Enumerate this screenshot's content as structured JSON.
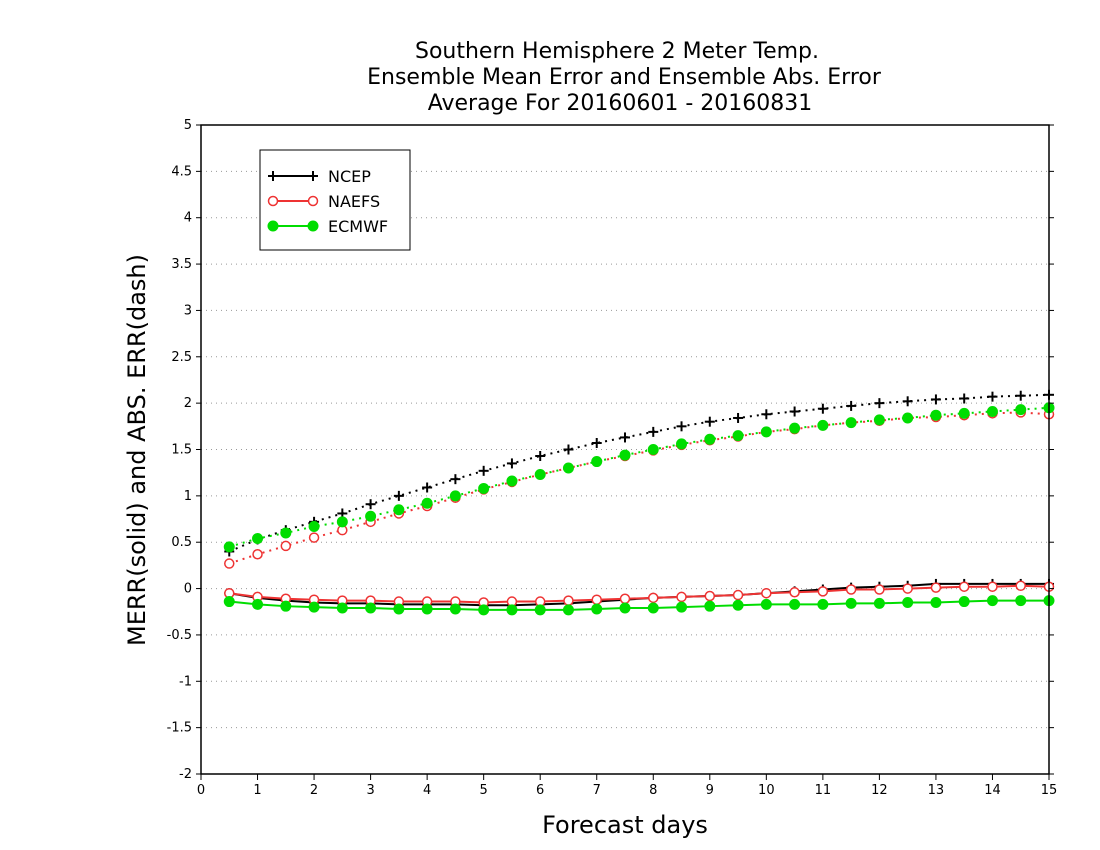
{
  "chart_data": {
    "type": "line",
    "title_lines": [
      "Southern Hemisphere 2 Meter Temp.",
      "Ensemble Mean Error and Ensemble Abs. Error",
      "Average For 20160601 - 20160831"
    ],
    "xlabel": "Forecast days",
    "ylabel": "MERR(solid) and ABS. ERR(dash)",
    "xlim": [
      0,
      15
    ],
    "ylim": [
      -2,
      5
    ],
    "x_ticks": [
      "0",
      "1",
      "2",
      "3",
      "4",
      "5",
      "6",
      "7",
      "8",
      "9",
      "10",
      "11",
      "12",
      "13",
      "14",
      "15"
    ],
    "y_ticks": [
      "-2",
      "-1.5",
      "-1",
      "-0.5",
      "0",
      "0.5",
      "1",
      "1.5",
      "2",
      "2.5",
      "3",
      "3.5",
      "4",
      "4.5",
      "5"
    ],
    "grid": "horizontal dotted",
    "legend_position": "top-left",
    "x": [
      0.5,
      1,
      1.5,
      2,
      2.5,
      3,
      3.5,
      4,
      4.5,
      5,
      5.5,
      6,
      6.5,
      7,
      7.5,
      8,
      8.5,
      9,
      9.5,
      10,
      10.5,
      11,
      11.5,
      12,
      12.5,
      13,
      13.5,
      14,
      14.5,
      15
    ],
    "series": [
      {
        "name": "NCEP",
        "color": "#000000",
        "marker": "plus",
        "abs_err": [
          0.4,
          0.53,
          0.63,
          0.72,
          0.81,
          0.91,
          1.0,
          1.09,
          1.18,
          1.27,
          1.35,
          1.43,
          1.5,
          1.57,
          1.63,
          1.69,
          1.75,
          1.8,
          1.84,
          1.88,
          1.91,
          1.94,
          1.97,
          2.0,
          2.02,
          2.04,
          2.05,
          2.07,
          2.08,
          2.09
        ],
        "mean_err": [
          -0.05,
          -0.1,
          -0.13,
          -0.15,
          -0.16,
          -0.16,
          -0.17,
          -0.17,
          -0.17,
          -0.18,
          -0.18,
          -0.17,
          -0.16,
          -0.14,
          -0.12,
          -0.1,
          -0.09,
          -0.08,
          -0.07,
          -0.05,
          -0.03,
          -0.01,
          0.01,
          0.02,
          0.03,
          0.05,
          0.05,
          0.05,
          0.05,
          0.05
        ]
      },
      {
        "name": "NAEFS",
        "color": "#ee3333",
        "marker": "open-circle",
        "abs_err": [
          0.27,
          0.37,
          0.46,
          0.55,
          0.63,
          0.72,
          0.81,
          0.89,
          0.98,
          1.07,
          1.15,
          1.23,
          1.3,
          1.37,
          1.43,
          1.49,
          1.55,
          1.6,
          1.64,
          1.69,
          1.72,
          1.76,
          1.79,
          1.81,
          1.84,
          1.85,
          1.87,
          1.89,
          1.9,
          1.88
        ],
        "mean_err": [
          -0.05,
          -0.09,
          -0.11,
          -0.12,
          -0.13,
          -0.13,
          -0.14,
          -0.14,
          -0.14,
          -0.15,
          -0.14,
          -0.14,
          -0.13,
          -0.12,
          -0.11,
          -0.1,
          -0.09,
          -0.08,
          -0.07,
          -0.05,
          -0.04,
          -0.03,
          -0.01,
          -0.01,
          0.0,
          0.01,
          0.02,
          0.02,
          0.03,
          0.02
        ]
      },
      {
        "name": "ECMWF",
        "color": "#00dd00",
        "marker": "filled-circle",
        "abs_err": [
          0.45,
          0.54,
          0.6,
          0.67,
          0.72,
          0.78,
          0.85,
          0.92,
          1.0,
          1.08,
          1.16,
          1.23,
          1.3,
          1.37,
          1.44,
          1.5,
          1.56,
          1.61,
          1.65,
          1.69,
          1.73,
          1.76,
          1.79,
          1.82,
          1.84,
          1.87,
          1.89,
          1.91,
          1.93,
          1.95
        ],
        "mean_err": [
          -0.14,
          -0.17,
          -0.19,
          -0.2,
          -0.21,
          -0.21,
          -0.22,
          -0.22,
          -0.22,
          -0.23,
          -0.23,
          -0.23,
          -0.23,
          -0.22,
          -0.21,
          -0.21,
          -0.2,
          -0.19,
          -0.18,
          -0.17,
          -0.17,
          -0.17,
          -0.16,
          -0.16,
          -0.15,
          -0.15,
          -0.14,
          -0.13,
          -0.13,
          -0.13
        ]
      }
    ]
  }
}
